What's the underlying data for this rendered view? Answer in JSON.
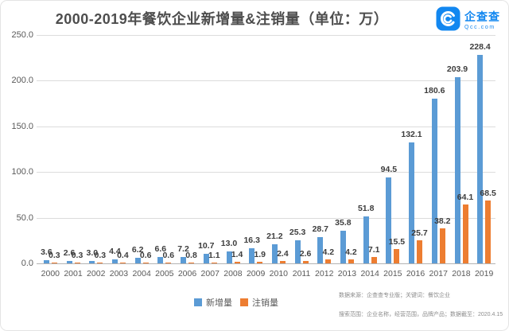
{
  "title": "2000-2019年餐饮企业新增量&注销量（单位：万）",
  "logo": {
    "name": "企查查",
    "domain": "Qcc.com",
    "brand_color": "#1287f0"
  },
  "legend": [
    {
      "label": "新增量",
      "color": "#5B9BD5"
    },
    {
      "label": "注销量",
      "color": "#ED7D31"
    }
  ],
  "footnotes": [
    "数据来源：企查查专业版；关键词：餐饮企业",
    "搜索范围：企业名称，经营范围，品牌产品；数据截至：2020.4.15"
  ],
  "chart_data": {
    "type": "bar",
    "title": "2000-2019年餐饮企业新增量&注销量（单位：万）",
    "unit": "万",
    "categories": [
      "2000",
      "2001",
      "2002",
      "2003",
      "2004",
      "2005",
      "2006",
      "2007",
      "2008",
      "2009",
      "2010",
      "2011",
      "2012",
      "2013",
      "2014",
      "2015",
      "2016",
      "2017",
      "2018",
      "2019"
    ],
    "series": [
      {
        "name": "新增量",
        "color": "#5B9BD5",
        "values": [
          3.6,
          2.6,
          3.0,
          4.4,
          6.2,
          6.6,
          7.2,
          10.7,
          13.0,
          16.3,
          21.2,
          25.3,
          28.7,
          35.8,
          51.8,
          94.5,
          132.1,
          180.6,
          203.9,
          228.4
        ]
      },
      {
        "name": "注销量",
        "color": "#ED7D31",
        "values": [
          0.3,
          0.3,
          0.3,
          0.4,
          0.6,
          0.6,
          0.8,
          1.1,
          1.4,
          1.9,
          2.4,
          2.6,
          4.2,
          4.2,
          7.1,
          15.5,
          25.7,
          38.2,
          64.1,
          68.5
        ]
      }
    ],
    "ylim": [
      0,
      250
    ],
    "yticks": [
      0,
      50,
      100,
      150,
      200,
      250
    ],
    "ytick_labels": [
      "0.0",
      "50.0",
      "100.0",
      "150.0",
      "200.0",
      "250.0"
    ],
    "grid": true,
    "data_labels": true,
    "legend_position": "bottom"
  }
}
